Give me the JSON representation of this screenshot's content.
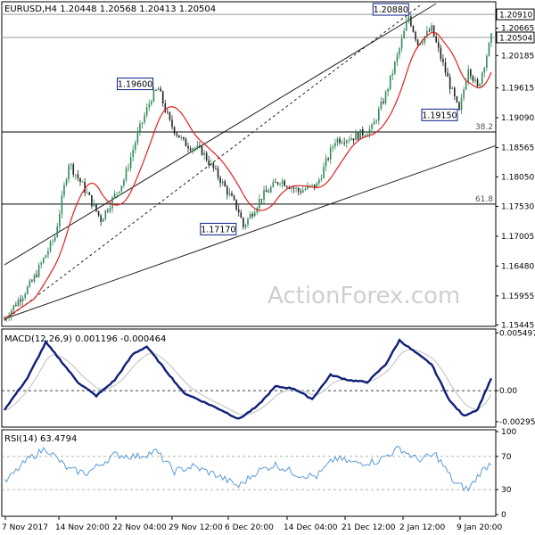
{
  "header": {
    "title": "EURUSD,H4  1.20448 1.20568 1.20413 1.20504"
  },
  "watermark": "ActionForex.com",
  "colors": {
    "bull_candle": "#2e8b57",
    "bear_candle": "#222222",
    "ma": "#e02020",
    "channel": "#222222",
    "macd": "#0f1f7a",
    "macd_signal": "#c8c8c8",
    "rsi": "#5b9bd5",
    "price_box": "#0b1f8c"
  },
  "chart_data": [
    {
      "type": "candlestick",
      "title": "EURUSD,H4  1.20448 1.20568 1.20413 1.20504",
      "ylim": [
        1.1545,
        1.211
      ],
      "y_ticks": [
        "1.20665",
        "1.20185",
        "1.19615",
        "1.19090",
        "1.18565",
        "1.18050",
        "1.17530",
        "1.17005",
        "1.16480",
        "1.15955",
        "1.15445"
      ],
      "price_labels": [
        "1.20910",
        "1.20504"
      ],
      "annotations": [
        "1.20880",
        "1.19600",
        "1.19150",
        "1.17170"
      ],
      "fib_levels": [
        {
          "label": "38.2",
          "value": 1.1884
        },
        {
          "label": "61.8",
          "value": 1.1757
        }
      ],
      "horizontal_lines": [
        1.2091,
        1.20504
      ],
      "x_ticks": [
        "7 Nov 2017",
        "14 Nov 20:00",
        "22 Nov 04:00",
        "29 Nov 12:00",
        "6 Dec 20:00",
        "14 Dec 04:00",
        "21 Dec 12:00",
        "2 Jan 12:00",
        "9 Jan 20:00"
      ],
      "anchors": [
        {
          "t": 0,
          "price": 1.1555
        },
        {
          "t": 12,
          "price": 1.162
        },
        {
          "t": 22,
          "price": 1.17
        },
        {
          "t": 28,
          "price": 1.183
        },
        {
          "t": 34,
          "price": 1.179
        },
        {
          "t": 42,
          "price": 1.173
        },
        {
          "t": 52,
          "price": 1.18
        },
        {
          "t": 58,
          "price": 1.188
        },
        {
          "t": 64,
          "price": 1.1945
        },
        {
          "t": 67,
          "price": 1.196
        },
        {
          "t": 72,
          "price": 1.19
        },
        {
          "t": 78,
          "price": 1.1865
        },
        {
          "t": 86,
          "price": 1.185
        },
        {
          "t": 94,
          "price": 1.18
        },
        {
          "t": 102,
          "price": 1.1745
        },
        {
          "t": 104,
          "price": 1.1717
        },
        {
          "t": 112,
          "price": 1.177
        },
        {
          "t": 120,
          "price": 1.18
        },
        {
          "t": 128,
          "price": 1.178
        },
        {
          "t": 136,
          "price": 1.179
        },
        {
          "t": 144,
          "price": 1.187
        },
        {
          "t": 152,
          "price": 1.1875
        },
        {
          "t": 160,
          "price": 1.189
        },
        {
          "t": 166,
          "price": 1.195
        },
        {
          "t": 172,
          "price": 1.203
        },
        {
          "t": 176,
          "price": 1.2088
        },
        {
          "t": 180,
          "price": 1.204
        },
        {
          "t": 186,
          "price": 1.2065
        },
        {
          "t": 192,
          "price": 1.199
        },
        {
          "t": 198,
          "price": 1.1918
        },
        {
          "t": 202,
          "price": 1.2
        },
        {
          "t": 206,
          "price": 1.196
        },
        {
          "t": 212,
          "price": 1.205
        }
      ]
    },
    {
      "type": "line",
      "title": "MACD(12,26,9) 0.001196 -0.000464",
      "ylim": [
        -0.0033,
        0.0057
      ],
      "y_ticks": [
        "0.005497",
        "0.00",
        "-0.002955"
      ],
      "anchors": [
        {
          "t": 0,
          "v": -0.0018
        },
        {
          "t": 10,
          "v": 0.0012
        },
        {
          "t": 18,
          "v": 0.0046
        },
        {
          "t": 24,
          "v": 0.003
        },
        {
          "t": 32,
          "v": 0.0008
        },
        {
          "t": 40,
          "v": -0.0005
        },
        {
          "t": 48,
          "v": 0.001
        },
        {
          "t": 56,
          "v": 0.0035
        },
        {
          "t": 62,
          "v": 0.0042
        },
        {
          "t": 70,
          "v": 0.002
        },
        {
          "t": 78,
          "v": -0.0002
        },
        {
          "t": 86,
          "v": -0.001
        },
        {
          "t": 94,
          "v": -0.0018
        },
        {
          "t": 102,
          "v": -0.0027
        },
        {
          "t": 110,
          "v": -0.0015
        },
        {
          "t": 118,
          "v": 0.0004
        },
        {
          "t": 126,
          "v": 0.0002
        },
        {
          "t": 134,
          "v": -0.0008
        },
        {
          "t": 142,
          "v": 0.0015
        },
        {
          "t": 150,
          "v": 0.001
        },
        {
          "t": 158,
          "v": 0.0008
        },
        {
          "t": 166,
          "v": 0.0025
        },
        {
          "t": 172,
          "v": 0.0048
        },
        {
          "t": 178,
          "v": 0.0038
        },
        {
          "t": 186,
          "v": 0.0025
        },
        {
          "t": 194,
          "v": -0.001
        },
        {
          "t": 200,
          "v": -0.0024
        },
        {
          "t": 206,
          "v": -0.0018
        },
        {
          "t": 212,
          "v": 0.0012
        }
      ]
    },
    {
      "type": "line",
      "title": "RSI(14) 63.4794",
      "ylim": [
        0,
        100
      ],
      "y_ticks": [
        "100",
        "70",
        "30",
        "0"
      ],
      "reference_levels": [
        70,
        30
      ],
      "anchors": [
        {
          "t": 0,
          "v": 38
        },
        {
          "t": 10,
          "v": 66
        },
        {
          "t": 18,
          "v": 80
        },
        {
          "t": 28,
          "v": 54
        },
        {
          "t": 36,
          "v": 50
        },
        {
          "t": 48,
          "v": 72
        },
        {
          "t": 58,
          "v": 70
        },
        {
          "t": 66,
          "v": 76
        },
        {
          "t": 74,
          "v": 52
        },
        {
          "t": 82,
          "v": 58
        },
        {
          "t": 92,
          "v": 48
        },
        {
          "t": 102,
          "v": 34
        },
        {
          "t": 110,
          "v": 52
        },
        {
          "t": 118,
          "v": 60
        },
        {
          "t": 128,
          "v": 48
        },
        {
          "t": 136,
          "v": 46
        },
        {
          "t": 144,
          "v": 68
        },
        {
          "t": 152,
          "v": 62
        },
        {
          "t": 162,
          "v": 64
        },
        {
          "t": 172,
          "v": 80
        },
        {
          "t": 180,
          "v": 66
        },
        {
          "t": 188,
          "v": 72
        },
        {
          "t": 196,
          "v": 38
        },
        {
          "t": 202,
          "v": 30
        },
        {
          "t": 207,
          "v": 50
        },
        {
          "t": 212,
          "v": 63
        }
      ]
    }
  ]
}
